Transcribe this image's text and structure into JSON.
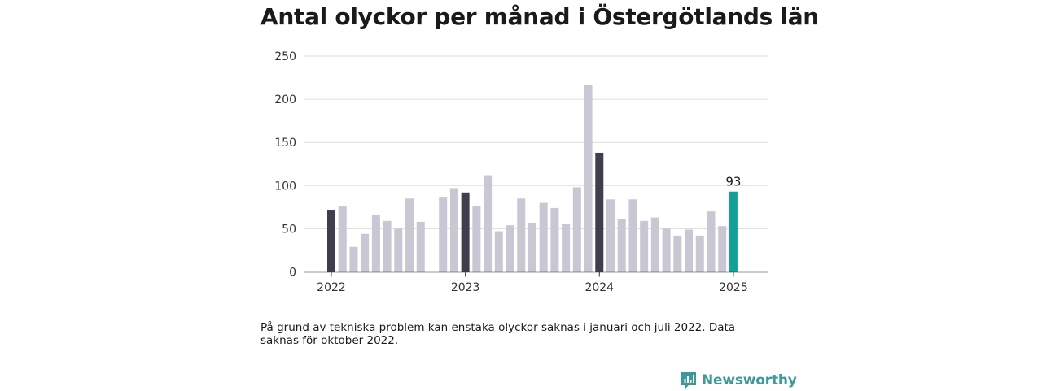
{
  "title": "Antal olyckor per månad i Östergötlands län",
  "note": "På grund av tekniska problem kan enstaka olyckor saknas i januari och juli 2022. Data saknas för oktober 2022.",
  "brand": {
    "name": "Newsworthy",
    "icon": "newsworthy-logo-icon",
    "color": "#3d9a9a"
  },
  "colors": {
    "january": "#3f3e4d",
    "other": "#c9c7d3",
    "latest": "#12a097",
    "grid": "#dddddd",
    "axis": "#333333"
  },
  "chart_data": {
    "type": "bar",
    "title": "Antal olyckor per månad i Östergötlands län",
    "xlabel": "",
    "ylabel": "",
    "ylim": [
      0,
      250
    ],
    "yticks": [
      "0",
      "50",
      "100",
      "150",
      "200",
      "250"
    ],
    "xticks": [
      {
        "label": "2022",
        "month": "2022-01"
      },
      {
        "label": "2023",
        "month": "2023-01"
      },
      {
        "label": "2024",
        "month": "2024-01"
      },
      {
        "label": "2025",
        "month": "2025-01"
      }
    ],
    "grid": true,
    "categories": [
      "2022-01",
      "2022-02",
      "2022-03",
      "2022-04",
      "2022-05",
      "2022-06",
      "2022-07",
      "2022-08",
      "2022-09",
      "2022-10",
      "2022-11",
      "2022-12",
      "2023-01",
      "2023-02",
      "2023-03",
      "2023-04",
      "2023-05",
      "2023-06",
      "2023-07",
      "2023-08",
      "2023-09",
      "2023-10",
      "2023-11",
      "2023-12",
      "2024-01",
      "2024-02",
      "2024-03",
      "2024-04",
      "2024-05",
      "2024-06",
      "2024-07",
      "2024-08",
      "2024-09",
      "2024-10",
      "2024-11",
      "2024-12",
      "2025-01"
    ],
    "values": [
      72,
      76,
      29,
      44,
      66,
      59,
      50,
      85,
      58,
      null,
      87,
      97,
      92,
      76,
      112,
      47,
      54,
      85,
      57,
      80,
      74,
      56,
      98,
      217,
      138,
      84,
      61,
      84,
      59,
      63,
      50,
      42,
      49,
      42,
      70,
      53,
      93
    ],
    "highlight": {
      "month": "2025-01",
      "label": "93"
    }
  }
}
